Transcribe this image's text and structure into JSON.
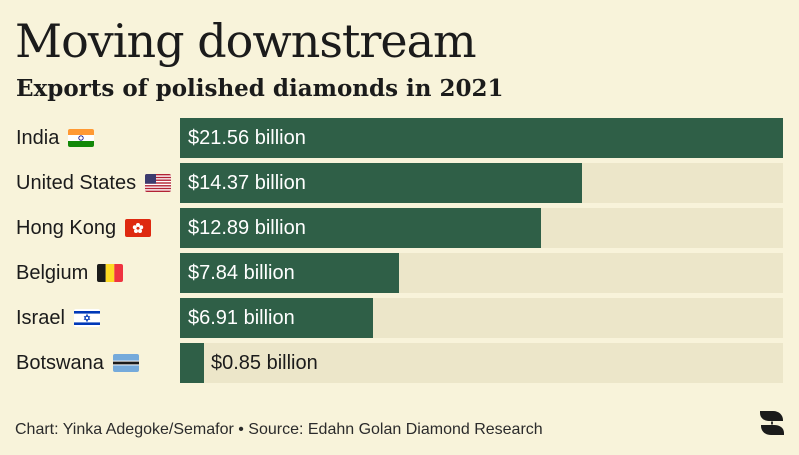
{
  "title": "Moving downstream",
  "subtitle": "Exports of polished diamonds in 2021",
  "chart_data": {
    "type": "bar",
    "orientation": "horizontal",
    "title": "Moving downstream",
    "subtitle": "Exports of polished diamonds in 2021",
    "categories": [
      "India",
      "United States",
      "Hong Kong",
      "Belgium",
      "Israel",
      "Botswana"
    ],
    "values": [
      21.56,
      14.37,
      12.89,
      7.84,
      6.91,
      0.85
    ],
    "value_labels": [
      "$21.56 billion",
      "$14.37 billion",
      "$12.89 billion",
      "$7.84 billion",
      "$6.91 billion",
      "$0.85 billion"
    ],
    "unit": "billion USD",
    "xlim": [
      0,
      21.56
    ],
    "flags": [
      "india-flag-icon",
      "us-flag-icon",
      "hong-kong-flag-icon",
      "belgium-flag-icon",
      "israel-flag-icon",
      "botswana-flag-icon"
    ],
    "colors": {
      "bar": "#2f5f47",
      "track": "#ece6c9",
      "background": "#f8f3da"
    }
  },
  "footer": "Chart: Yinka Adegoke/Semafor • Source: Edahn Golan Diamond Research",
  "logo_icon": "semafor-logo-icon"
}
